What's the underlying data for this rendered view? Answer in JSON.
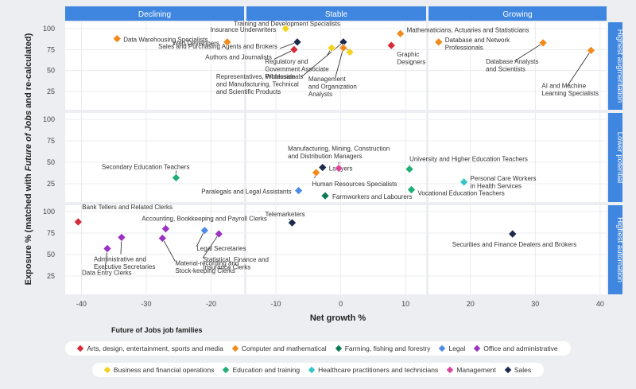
{
  "chart_data": {
    "type": "scatter",
    "xlabel": "Net growth %",
    "ylabel_parts": [
      "Exposure % (matched with ",
      "Future of Jobs",
      " and re-calculated)"
    ],
    "x_ticks": [
      -40,
      -30,
      -20,
      -10,
      0,
      10,
      20,
      30,
      40
    ],
    "y_ticks": [
      25,
      50,
      75,
      100
    ],
    "xlim": [
      -42.5,
      41
    ],
    "ylim": [
      10,
      108
    ],
    "col_headers": [
      "Declining",
      "Stable",
      "Growing"
    ],
    "row_headers": [
      "Highest augmentation",
      "Lower potential",
      "Highest automation"
    ],
    "legend_title": "Future of Jobs job families",
    "families": [
      {
        "key": "arts",
        "name": "Arts, design, entertainment, sports and media",
        "color": "#d62b3a"
      },
      {
        "key": "comp",
        "name": "Computer and mathematical",
        "color": "#f28b1d"
      },
      {
        "key": "farm",
        "name": "Farming, fishing and forestry",
        "color": "#0f7a56"
      },
      {
        "key": "legal",
        "name": "Legal",
        "color": "#4e8be8"
      },
      {
        "key": "office",
        "name": "Office and administrative",
        "color": "#9a33c2"
      },
      {
        "key": "biz",
        "name": "Business and financial operations",
        "color": "#f5d21e"
      },
      {
        "key": "edu",
        "name": "Education and training",
        "color": "#1fae75"
      },
      {
        "key": "health",
        "name": "Healthcare practitioners and technicians",
        "color": "#36c6c8"
      },
      {
        "key": "mgmt",
        "name": "Management",
        "color": "#d9469b"
      },
      {
        "key": "sales",
        "name": "Sales",
        "color": "#1c2a4c"
      }
    ],
    "points": [
      {
        "row": 0,
        "fam": "biz",
        "x": -8.5,
        "y": 100,
        "label": "Insurance Underwriters"
      },
      {
        "row": 0,
        "fam": "comp",
        "x": -17.5,
        "y": 84,
        "label": "Web Developers"
      },
      {
        "row": 0,
        "fam": "sales",
        "x": -6.7,
        "y": 84,
        "label": "Sales and Purchasing Agents and Brokers"
      },
      {
        "row": 0,
        "fam": "arts",
        "x": -7.2,
        "y": 75,
        "label": "Authors and Journalists"
      },
      {
        "row": 0,
        "fam": "comp",
        "x": -34.5,
        "y": 88,
        "label": "Data Warehousing Specialists"
      },
      {
        "row": 0,
        "fam": "biz",
        "x": -1.4,
        "y": 77,
        "label": "Regulatory and Government Associate Professionals"
      },
      {
        "row": 0,
        "fam": "sales",
        "x": 0.4,
        "y": 84,
        "label": "Representatives, Wholesale and Manufacturing, Technical and Scientific Products"
      },
      {
        "row": 0,
        "fam": "biz",
        "x": 1.4,
        "y": 72,
        "label": "Training and Development Specialists"
      },
      {
        "row": 0,
        "fam": "comp",
        "x": 0.4,
        "y": 77,
        "label": "Management and Organization Analysts"
      },
      {
        "row": 0,
        "fam": "comp",
        "x": 9.2,
        "y": 94,
        "label": "Mathematicians, Actuaries and Statisticians"
      },
      {
        "row": 0,
        "fam": "comp",
        "x": 15.1,
        "y": 84,
        "label": "Database and Network Professionals"
      },
      {
        "row": 0,
        "fam": "arts",
        "x": 7.8,
        "y": 80,
        "label": "Graphic Designers"
      },
      {
        "row": 0,
        "fam": "comp",
        "x": 31.2,
        "y": 83,
        "label": "Database Analysts and Scientists"
      },
      {
        "row": 0,
        "fam": "comp",
        "x": 38.6,
        "y": 74,
        "label": "AI and Machine Learning Specialists"
      },
      {
        "row": 1,
        "fam": "edu",
        "x": -25.4,
        "y": 32,
        "label": "Secondary Education Teachers"
      },
      {
        "row": 1,
        "fam": "legal",
        "x": -6.5,
        "y": 17,
        "label": "Paralegals and Legal Assistants"
      },
      {
        "row": 1,
        "fam": "sales",
        "x": -2.8,
        "y": 44,
        "label": "Lawyers"
      },
      {
        "row": 1,
        "fam": "comp",
        "x": -3.8,
        "y": 38,
        "label": "Human Resources Specialists"
      },
      {
        "row": 1,
        "fam": "farm",
        "x": -2.4,
        "y": 11,
        "label": "Farmworkers and Labourers"
      },
      {
        "row": 1,
        "fam": "mgmt",
        "x": -0.3,
        "y": 43,
        "label": "Manufacturing, Mining, Construction and Distribution Managers"
      },
      {
        "row": 1,
        "fam": "edu",
        "x": 10.6,
        "y": 42,
        "label": "University and Higher Education Teachers"
      },
      {
        "row": 1,
        "fam": "health",
        "x": 19.0,
        "y": 27,
        "label": "Personal Care Workers in Health Services"
      },
      {
        "row": 1,
        "fam": "edu",
        "x": 10.9,
        "y": 18,
        "label": "Vocational Education Teachers"
      },
      {
        "row": 2,
        "fam": "arts",
        "x": -40.5,
        "y": 88,
        "label": "Bank Tellers and Related Clerks"
      },
      {
        "row": 2,
        "fam": "office",
        "x": -27.0,
        "y": 80,
        "label": "Accounting, Bookkeeping and Payroll Clerks"
      },
      {
        "row": 2,
        "fam": "sales",
        "x": -7.5,
        "y": 87,
        "label": "Telemarketers"
      },
      {
        "row": 2,
        "fam": "office",
        "x": -33.8,
        "y": 70,
        "label": "Administrative and Executive Secretaries"
      },
      {
        "row": 2,
        "fam": "office",
        "x": -36.0,
        "y": 57,
        "label": "Data Entry Clerks"
      },
      {
        "row": 2,
        "fam": "legal",
        "x": -21.0,
        "y": 78,
        "label": "Legal Secretaries"
      },
      {
        "row": 2,
        "fam": "office",
        "x": -18.8,
        "y": 74,
        "label": "Statistical, Finance and Insurance Clerks"
      },
      {
        "row": 2,
        "fam": "office",
        "x": -27.5,
        "y": 69,
        "label": "Material-recording and Stock-keeping Clerks"
      },
      {
        "row": 2,
        "fam": "sales",
        "x": 26.5,
        "y": 74,
        "label": "Securities and Finance Dealers and Brokers"
      }
    ]
  }
}
